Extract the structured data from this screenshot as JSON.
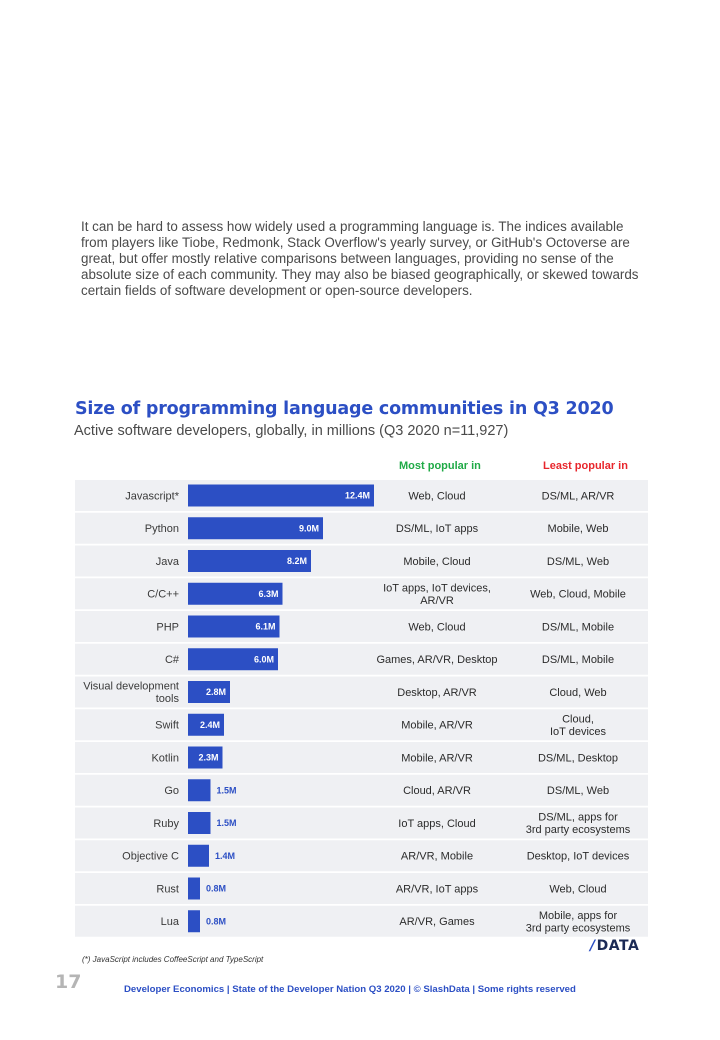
{
  "intro_text": "It can be hard to assess how widely used a programming language is. The indices available from players like Tiobe, Redmonk, Stack Overflow's yearly survey, or GitHub's Octoverse are great, but offer mostly relative comparisons between languages, providing no sense of the absolute size of each community. They may also be biased geographically, or skewed towards certain fields of software development or open-source developers.",
  "colors": {
    "bar": "#2c4fc4",
    "row_band": "#eff0f3",
    "title": "#2c4fc4",
    "most": "#1faa46",
    "least": "#e8262c"
  },
  "chart_data": {
    "type": "bar",
    "orientation": "horizontal",
    "title": "Size of programming language communities in Q3 2020",
    "subtitle": "Active software developers, globally, in millions (Q3 2020 n=11,927)",
    "units": "millions",
    "column_headers": {
      "most": "Most popular in",
      "least": "Least popular in"
    },
    "rows": [
      {
        "language": [
          "Javascript*"
        ],
        "value": 12.4,
        "label": "12.4M",
        "most": [
          "Web, Cloud"
        ],
        "least": [
          "DS/ML, AR/VR"
        ]
      },
      {
        "language": [
          "Python"
        ],
        "value": 9.0,
        "label": "9.0M",
        "most": [
          "DS/ML, IoT apps"
        ],
        "least": [
          "Mobile, Web"
        ]
      },
      {
        "language": [
          "Java"
        ],
        "value": 8.2,
        "label": "8.2M",
        "most": [
          "Mobile, Cloud"
        ],
        "least": [
          "DS/ML, Web"
        ]
      },
      {
        "language": [
          "C/C++"
        ],
        "value": 6.3,
        "label": "6.3M",
        "most": [
          "IoT apps, IoT devices,",
          "AR/VR"
        ],
        "least": [
          "Web, Cloud, Mobile"
        ]
      },
      {
        "language": [
          "PHP"
        ],
        "value": 6.1,
        "label": "6.1M",
        "most": [
          "Web, Cloud"
        ],
        "least": [
          "DS/ML, Mobile"
        ]
      },
      {
        "language": [
          "C#"
        ],
        "value": 6.0,
        "label": "6.0M",
        "most": [
          "Games, AR/VR, Desktop"
        ],
        "least": [
          "DS/ML, Mobile"
        ]
      },
      {
        "language": [
          "Visual development",
          "tools"
        ],
        "value": 2.8,
        "label": "2.8M",
        "most": [
          "Desktop, AR/VR"
        ],
        "least": [
          "Cloud, Web"
        ]
      },
      {
        "language": [
          "Swift"
        ],
        "value": 2.4,
        "label": "2.4M",
        "most": [
          "Mobile, AR/VR"
        ],
        "least": [
          "Cloud,",
          "IoT devices"
        ]
      },
      {
        "language": [
          "Kotlin"
        ],
        "value": 2.3,
        "label": "2.3M",
        "most": [
          "Mobile, AR/VR"
        ],
        "least": [
          "DS/ML, Desktop"
        ]
      },
      {
        "language": [
          "Go"
        ],
        "value": 1.5,
        "label": "1.5M",
        "most": [
          "Cloud, AR/VR"
        ],
        "least": [
          "DS/ML, Web"
        ]
      },
      {
        "language": [
          "Ruby"
        ],
        "value": 1.5,
        "label": "1.5M",
        "most": [
          "IoT apps, Cloud"
        ],
        "least": [
          "DS/ML, apps for",
          "3rd party ecosystems"
        ]
      },
      {
        "language": [
          "Objective C"
        ],
        "value": 1.4,
        "label": "1.4M",
        "most": [
          "AR/VR, Mobile"
        ],
        "least": [
          "Desktop, IoT devices"
        ]
      },
      {
        "language": [
          "Rust"
        ],
        "value": 0.8,
        "label": "0.8M",
        "most": [
          "AR/VR, IoT apps"
        ],
        "least": [
          "Web, Cloud"
        ]
      },
      {
        "language": [
          "Lua"
        ],
        "value": 0.8,
        "label": "0.8M",
        "most": [
          "AR/VR, Games"
        ],
        "least": [
          "Mobile, apps for",
          "3rd party ecosystems"
        ]
      }
    ]
  },
  "footnote": "(*) JavaScript includes CoffeeScript and TypeScript",
  "logo": {
    "slash": "/",
    "text": "DATA"
  },
  "page_number": "17",
  "footer": {
    "part1": "Developer Economics",
    "sep": "|",
    "part2": "State of the Developer Nation Q3 2020",
    "part3": "© SlashData",
    "part4": "Some rights reserved"
  }
}
